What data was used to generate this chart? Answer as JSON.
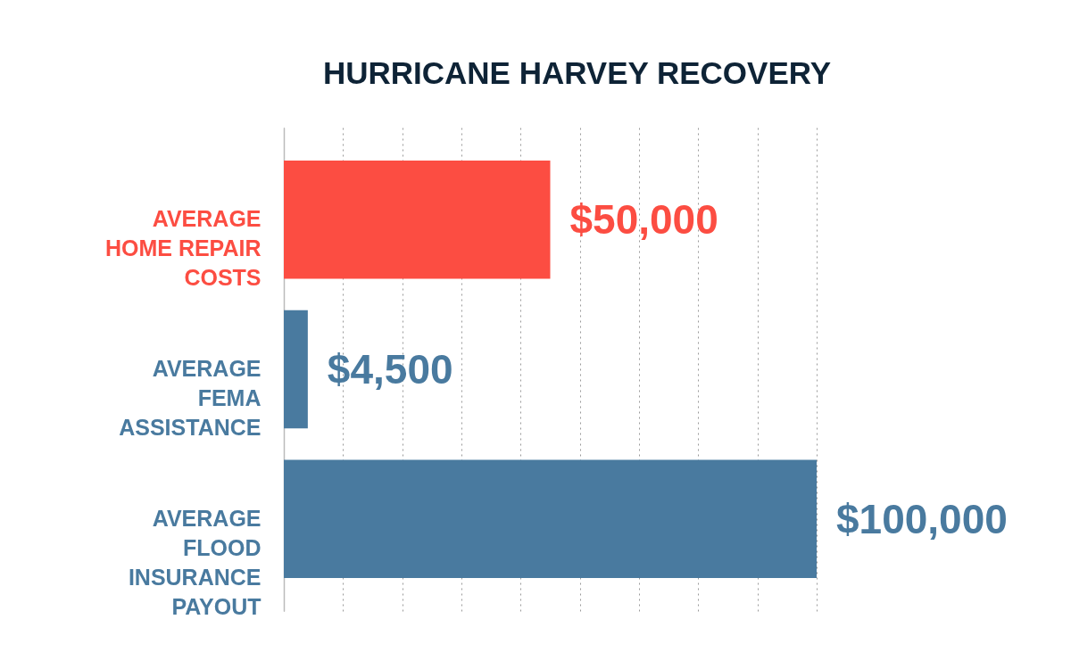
{
  "chart_data": {
    "type": "bar",
    "orientation": "horizontal",
    "title": "HURRICANE HARVEY RECOVERY",
    "categories": [
      "AVERAGE HOME REPAIR COSTS",
      "AVERAGE FEMA ASSISTANCE",
      "AVERAGE FLOOD INSURANCE PAYOUT"
    ],
    "values": [
      50000,
      4500,
      100000
    ],
    "value_labels": [
      "$50,000",
      "$4,500",
      "$100,000"
    ],
    "colors": [
      "#fc4d42",
      "#497a9f",
      "#497a9f"
    ],
    "xlim": [
      0,
      100000
    ],
    "xticks": [
      {
        "value": 0,
        "label": null
      },
      {
        "value": 11111,
        "label": null
      },
      {
        "value": 22222,
        "label": null
      },
      {
        "value": 33333,
        "label": null
      },
      {
        "value": 44444,
        "label": null
      },
      {
        "value": 55556,
        "label": null
      },
      {
        "value": 66667,
        "label": null
      },
      {
        "value": 77778,
        "label": null
      },
      {
        "value": 88889,
        "label": null
      },
      {
        "value": 100000,
        "label": null
      }
    ],
    "grid": "x",
    "tick_labels": "y",
    "legend": false
  }
}
